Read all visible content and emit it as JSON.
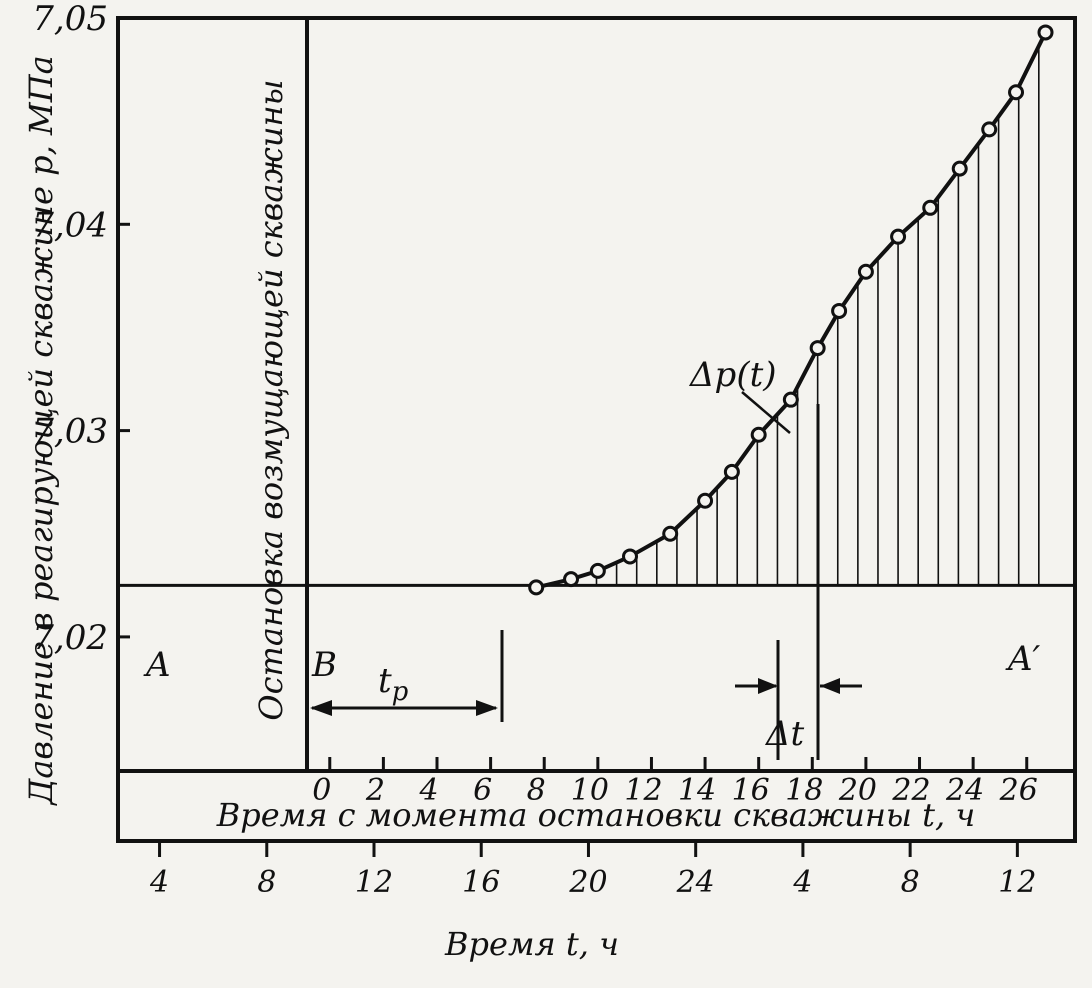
{
  "chart_data": {
    "type": "line",
    "ylabel": "Давление в реагирующей скважине p, МПа",
    "xlabel": "Время с момента остановки скважины t, ч",
    "xlabel2": "Время t, ч",
    "stop_label": "Остановка возмущающей скважины",
    "ylim": [
      7.0135,
      7.05
    ],
    "xlim": [
      -7.9,
      27.8
    ],
    "y_ticks": [
      "7,02",
      "7,03",
      "7,04",
      "7,05"
    ],
    "y_tick_values": [
      7.02,
      7.03,
      7.04,
      7.05
    ],
    "x_ticks": [
      "0",
      "2",
      "4",
      "6",
      "8",
      "10",
      "12",
      "14",
      "16",
      "18",
      "20",
      "22",
      "24",
      "26"
    ],
    "x_tick_values": [
      0,
      2,
      4,
      6,
      8,
      10,
      12,
      14,
      16,
      18,
      20,
      22,
      24,
      26
    ],
    "x2_ticks": [
      "4",
      "8",
      "12",
      "16",
      "20",
      "24",
      "4",
      "8",
      "12"
    ],
    "x2_tick_values": [
      -6.35,
      -2.35,
      1.65,
      5.65,
      9.65,
      13.65,
      17.65,
      21.65,
      25.65
    ],
    "baseline": 7.0225,
    "series": [
      {
        "x": [
          7.7,
          9.0,
          10.0,
          11.2,
          12.7,
          14.0,
          15.0,
          16.0,
          17.2,
          18.2,
          19.0,
          20.0,
          21.2,
          22.4,
          23.5,
          24.6,
          25.6,
          26.7
        ],
        "y": [
          7.0224,
          7.0228,
          7.0232,
          7.0239,
          7.025,
          7.0266,
          7.028,
          7.0298,
          7.0315,
          7.034,
          7.0358,
          7.0377,
          7.0394,
          7.0408,
          7.0427,
          7.0446,
          7.0464,
          7.0493
        ]
      }
    ],
    "annotations": {
      "point_A": "A",
      "point_A_prime": "A′",
      "point_B": "B",
      "tp": "t",
      "tp_sub": "p",
      "dp": "Δp(t)",
      "dt": "Δt"
    },
    "grid": false,
    "legend": "none"
  }
}
